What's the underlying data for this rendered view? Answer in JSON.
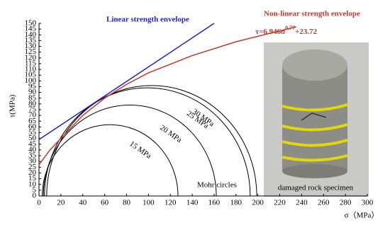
{
  "chart_data": {
    "type": "mohr",
    "xlabel": "σ（MPa）",
    "ylabel": "τ(MPa)",
    "xlim": [
      0,
      300
    ],
    "ylim": [
      0,
      150
    ],
    "xticks": [
      0,
      20,
      40,
      60,
      80,
      100,
      120,
      140,
      160,
      180,
      200,
      220,
      240,
      260,
      280,
      300
    ],
    "yticks": [
      0,
      5,
      10,
      15,
      20,
      25,
      30,
      35,
      40,
      45,
      50,
      55,
      60,
      65,
      70,
      75,
      80,
      85,
      90,
      95,
      100,
      105,
      110,
      115,
      120,
      125,
      130,
      135,
      140,
      145,
      150
    ],
    "envelopes": [
      {
        "name": "Linear strength envelope",
        "color": "#1f1fc8",
        "x": [
          0,
          160
        ],
        "values": [
          49,
          150
        ]
      },
      {
        "name": "Non-linear strength envelope",
        "color": "#c0392b",
        "x": [
          0,
          10,
          20,
          40,
          60,
          80,
          100,
          140,
          180,
          235
        ],
        "values": [
          27,
          40,
          50,
          70,
          85,
          97,
          107,
          122,
          134,
          147
        ]
      }
    ],
    "formula": [
      "τ=6.946σ",
      "0.77",
      "+23.72"
    ],
    "circles": [
      {
        "name": "15 MPa",
        "center": 65,
        "radius": 62
      },
      {
        "name": "20 MPa",
        "center": 83,
        "radius": 79
      },
      {
        "name": "25 MPa",
        "center": 99,
        "radius": 94
      },
      {
        "name": "30 MPa",
        "center": 103,
        "radius": 96
      }
    ],
    "circles_label": "Mohr circles",
    "photo_caption": "damaged rock specimen"
  }
}
